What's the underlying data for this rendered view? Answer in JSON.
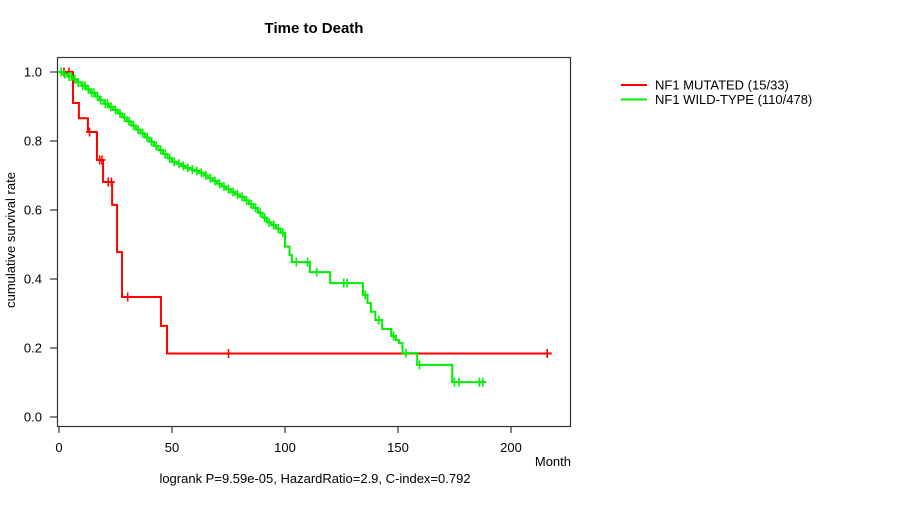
{
  "title": "Time to Death",
  "chart_data": {
    "type": "line",
    "subtype": "kaplan_meier_step",
    "title": "Time to Death",
    "xlabel": "Month",
    "ylabel": "cumulative survival rate",
    "footnote": "logrank P=9.59e-05, HazardRatio=2.9, C-index=0.792",
    "xlim": [
      0,
      226
    ],
    "ylim": [
      0,
      1.04
    ],
    "grid": false,
    "legend_position": "right-outside",
    "x_ticks": [
      0,
      50,
      100,
      150,
      200
    ],
    "x_tick_labels": [
      "0",
      "50",
      "100",
      "150",
      "200"
    ],
    "y_ticks": [
      0.0,
      0.2,
      0.4,
      0.6,
      0.8,
      1.0
    ],
    "y_tick_labels": [
      "0.0",
      "0.2",
      "0.4",
      "0.6",
      "0.8",
      "1.0"
    ],
    "series": [
      {
        "name": "NF1 MUTATED (15/33)",
        "color": "#ff0000",
        "end_month": 218,
        "points": [
          [
            0,
            1.0
          ],
          [
            6.2,
            0.91
          ],
          [
            8.8,
            0.866
          ],
          [
            12.8,
            0.826
          ],
          [
            16.8,
            0.745
          ],
          [
            19.5,
            0.681
          ],
          [
            23.5,
            0.615
          ],
          [
            25.7,
            0.478
          ],
          [
            27.9,
            0.348
          ],
          [
            45.1,
            0.264
          ],
          [
            47.8,
            0.184
          ]
        ],
        "censor_months": [
          2.2,
          4.4,
          13.5,
          18,
          19,
          21.8,
          23.2,
          30.4,
          75,
          216
        ]
      },
      {
        "name": "NF1 WILD-TYPE (110/478)",
        "color": "#00ee00",
        "end_month": 188.5,
        "points": [
          [
            0,
            1.0
          ],
          [
            2,
            0.994
          ],
          [
            4,
            0.987
          ],
          [
            6,
            0.979
          ],
          [
            8,
            0.97
          ],
          [
            10,
            0.96
          ],
          [
            12,
            0.95
          ],
          [
            14,
            0.94
          ],
          [
            16,
            0.929
          ],
          [
            18,
            0.918
          ],
          [
            20,
            0.908
          ],
          [
            22,
            0.899
          ],
          [
            24,
            0.89
          ],
          [
            26,
            0.88
          ],
          [
            28,
            0.868
          ],
          [
            30,
            0.857
          ],
          [
            32,
            0.845
          ],
          [
            34,
            0.833
          ],
          [
            36,
            0.822
          ],
          [
            38,
            0.81
          ],
          [
            40,
            0.798
          ],
          [
            42,
            0.786
          ],
          [
            44,
            0.774
          ],
          [
            46,
            0.762
          ],
          [
            48,
            0.75
          ],
          [
            50,
            0.74
          ],
          [
            52,
            0.734
          ],
          [
            54,
            0.728
          ],
          [
            56,
            0.722
          ],
          [
            58,
            0.717
          ],
          [
            60,
            0.713
          ],
          [
            62,
            0.708
          ],
          [
            64,
            0.7
          ],
          [
            66,
            0.692
          ],
          [
            68,
            0.684
          ],
          [
            70,
            0.676
          ],
          [
            72,
            0.668
          ],
          [
            74,
            0.66
          ],
          [
            76,
            0.652
          ],
          [
            78,
            0.645
          ],
          [
            80,
            0.638
          ],
          [
            82,
            0.628
          ],
          [
            84,
            0.617
          ],
          [
            86,
            0.606
          ],
          [
            88,
            0.592
          ],
          [
            90,
            0.578
          ],
          [
            92,
            0.564
          ],
          [
            94,
            0.556
          ],
          [
            96,
            0.546
          ],
          [
            98,
            0.534
          ],
          [
            100,
            0.494
          ],
          [
            102,
            0.47
          ],
          [
            103,
            0.449
          ],
          [
            111,
            0.42
          ],
          [
            120,
            0.388
          ],
          [
            134.5,
            0.354
          ],
          [
            136.5,
            0.33
          ],
          [
            138,
            0.305
          ],
          [
            140,
            0.281
          ],
          [
            143,
            0.255
          ],
          [
            147,
            0.235
          ],
          [
            149,
            0.223
          ],
          [
            150.5,
            0.214
          ],
          [
            152,
            0.185
          ],
          [
            158.5,
            0.151
          ],
          [
            174,
            0.101
          ]
        ],
        "censor_months": [
          1,
          2.5,
          4.5,
          5.5,
          7,
          8.5,
          10.5,
          11.5,
          13,
          14.5,
          15.5,
          17,
          18.5,
          20.5,
          21.5,
          23,
          25,
          27,
          29,
          31,
          33,
          35,
          37,
          39,
          41,
          43,
          45,
          47,
          49,
          51,
          53,
          55,
          57,
          59,
          61,
          63,
          65,
          67,
          69,
          71,
          73,
          75,
          77,
          79,
          81,
          83,
          85,
          87,
          89,
          91,
          93,
          95,
          97,
          99,
          105,
          110,
          114,
          126,
          127.5,
          135.5,
          141.5,
          148,
          153.5,
          159.5,
          175,
          177,
          186,
          187.5
        ]
      }
    ]
  }
}
